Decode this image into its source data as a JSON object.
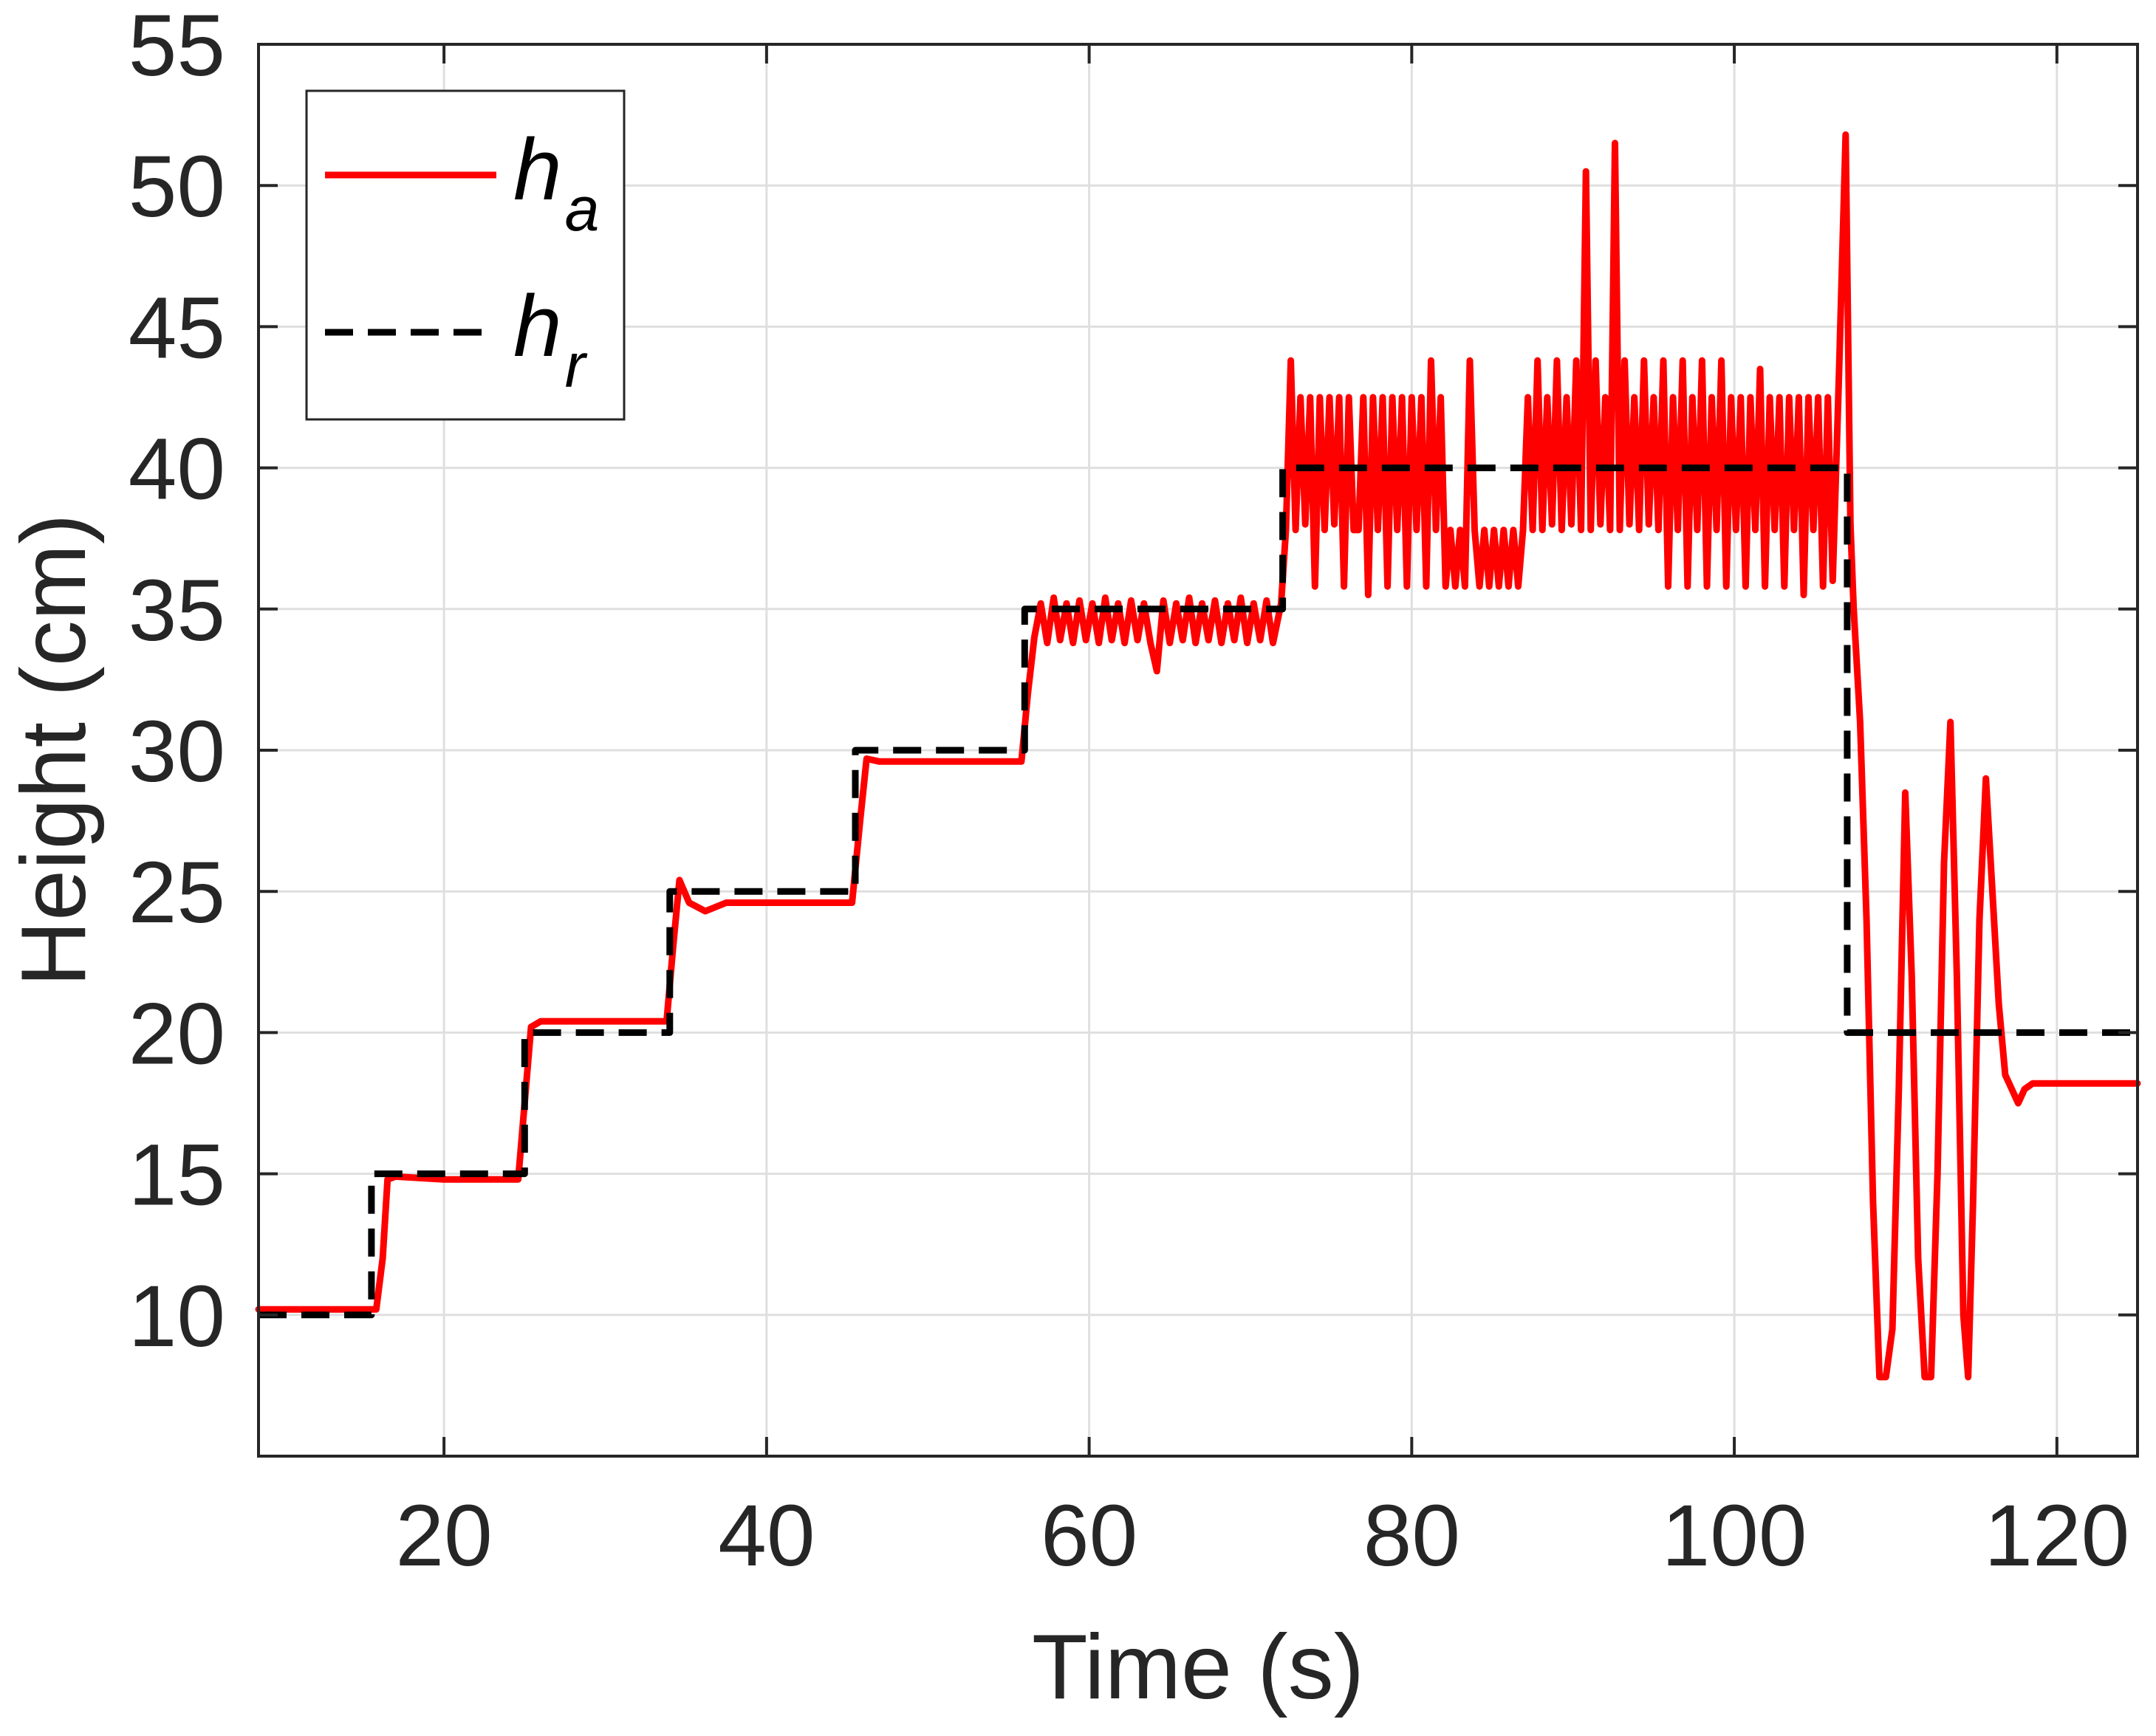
{
  "chart_data": {
    "type": "line",
    "xlabel": "Time (s)",
    "ylabel": "Height (cm)",
    "xlim": [
      8.5,
      125
    ],
    "ylim": [
      5,
      55
    ],
    "xticks": [
      20,
      40,
      60,
      80,
      100,
      120
    ],
    "yticks": [
      10,
      15,
      20,
      25,
      30,
      35,
      40,
      45,
      50,
      55
    ],
    "grid": true,
    "legend_position": "top-left",
    "series": [
      {
        "name": "h_a",
        "label_main": "h",
        "label_sub": "a",
        "style": "solid",
        "color": "#ff0000",
        "points": [
          [
            8.5,
            10.2
          ],
          [
            15.8,
            10.2
          ],
          [
            16.2,
            12.0
          ],
          [
            16.5,
            14.8
          ],
          [
            17.0,
            14.9
          ],
          [
            20,
            14.8
          ],
          [
            24.6,
            14.8
          ],
          [
            25.0,
            17.5
          ],
          [
            25.4,
            20.2
          ],
          [
            26.0,
            20.4
          ],
          [
            30,
            20.4
          ],
          [
            33.8,
            20.4
          ],
          [
            34.2,
            23.0
          ],
          [
            34.6,
            25.4
          ],
          [
            35.2,
            24.6
          ],
          [
            36.2,
            24.3
          ],
          [
            37.5,
            24.6
          ],
          [
            42,
            24.6
          ],
          [
            45.3,
            24.6
          ],
          [
            45.8,
            27.5
          ],
          [
            46.2,
            29.7
          ],
          [
            47.0,
            29.6
          ],
          [
            52,
            29.6
          ],
          [
            55.8,
            29.6
          ],
          [
            56.2,
            32.0
          ],
          [
            56.6,
            34.0
          ],
          [
            57.0,
            35.2
          ],
          [
            57.4,
            33.8
          ],
          [
            57.8,
            35.4
          ],
          [
            58.2,
            33.9
          ],
          [
            58.6,
            35.2
          ],
          [
            59.0,
            33.8
          ],
          [
            59.4,
            35.3
          ],
          [
            59.8,
            33.9
          ],
          [
            60.2,
            35.2
          ],
          [
            60.6,
            33.8
          ],
          [
            61.0,
            35.4
          ],
          [
            61.4,
            33.9
          ],
          [
            61.8,
            35.2
          ],
          [
            62.2,
            33.8
          ],
          [
            62.6,
            35.3
          ],
          [
            63.0,
            33.9
          ],
          [
            63.4,
            35.2
          ],
          [
            63.8,
            33.8
          ],
          [
            64.2,
            32.8
          ],
          [
            64.6,
            35.3
          ],
          [
            65.0,
            33.8
          ],
          [
            65.4,
            35.2
          ],
          [
            65.8,
            33.9
          ],
          [
            66.2,
            35.4
          ],
          [
            66.6,
            33.8
          ],
          [
            67.0,
            35.2
          ],
          [
            67.4,
            33.9
          ],
          [
            67.8,
            35.3
          ],
          [
            68.2,
            33.8
          ],
          [
            68.6,
            35.2
          ],
          [
            69.0,
            33.9
          ],
          [
            69.4,
            35.4
          ],
          [
            69.8,
            33.8
          ],
          [
            70.2,
            35.2
          ],
          [
            70.6,
            33.9
          ],
          [
            71.0,
            35.3
          ],
          [
            71.4,
            33.8
          ],
          [
            71.9,
            35.2
          ],
          [
            72.2,
            37.8
          ],
          [
            72.5,
            43.8
          ],
          [
            72.8,
            37.8
          ],
          [
            73.1,
            42.5
          ],
          [
            73.4,
            38.0
          ],
          [
            73.7,
            42.5
          ],
          [
            74.0,
            35.8
          ],
          [
            74.3,
            42.5
          ],
          [
            74.6,
            37.8
          ],
          [
            74.9,
            42.5
          ],
          [
            75.2,
            38.0
          ],
          [
            75.5,
            42.5
          ],
          [
            75.8,
            35.8
          ],
          [
            76.1,
            42.5
          ],
          [
            76.4,
            37.8
          ],
          [
            76.7,
            37.8
          ],
          [
            77.0,
            42.5
          ],
          [
            77.3,
            35.5
          ],
          [
            77.6,
            42.5
          ],
          [
            77.9,
            37.8
          ],
          [
            78.2,
            42.5
          ],
          [
            78.5,
            35.8
          ],
          [
            78.8,
            42.5
          ],
          [
            79.1,
            37.8
          ],
          [
            79.4,
            42.5
          ],
          [
            79.7,
            35.8
          ],
          [
            80.0,
            42.5
          ],
          [
            80.3,
            37.8
          ],
          [
            80.6,
            42.5
          ],
          [
            80.9,
            35.8
          ],
          [
            81.2,
            43.8
          ],
          [
            81.5,
            37.8
          ],
          [
            81.8,
            42.5
          ],
          [
            82.1,
            35.8
          ],
          [
            82.4,
            37.8
          ],
          [
            82.7,
            35.8
          ],
          [
            83.0,
            37.8
          ],
          [
            83.3,
            35.8
          ],
          [
            83.6,
            43.8
          ],
          [
            83.9,
            37.8
          ],
          [
            84.2,
            35.8
          ],
          [
            84.5,
            37.8
          ],
          [
            84.8,
            35.8
          ],
          [
            85.1,
            37.8
          ],
          [
            85.4,
            35.8
          ],
          [
            85.7,
            37.8
          ],
          [
            86.0,
            35.8
          ],
          [
            86.3,
            37.8
          ],
          [
            86.6,
            35.8
          ],
          [
            86.9,
            37.8
          ],
          [
            87.2,
            42.5
          ],
          [
            87.5,
            37.8
          ],
          [
            87.8,
            43.8
          ],
          [
            88.1,
            37.8
          ],
          [
            88.4,
            42.5
          ],
          [
            88.7,
            38.0
          ],
          [
            89.0,
            43.8
          ],
          [
            89.3,
            37.8
          ],
          [
            89.6,
            42.5
          ],
          [
            89.9,
            38.0
          ],
          [
            90.2,
            43.8
          ],
          [
            90.5,
            37.8
          ],
          [
            90.8,
            50.5
          ],
          [
            91.1,
            37.8
          ],
          [
            91.4,
            43.8
          ],
          [
            91.7,
            38.0
          ],
          [
            92.0,
            42.5
          ],
          [
            92.3,
            37.8
          ],
          [
            92.6,
            51.5
          ],
          [
            92.9,
            37.8
          ],
          [
            93.2,
            43.8
          ],
          [
            93.5,
            38.0
          ],
          [
            93.8,
            42.5
          ],
          [
            94.1,
            37.8
          ],
          [
            94.4,
            43.8
          ],
          [
            94.7,
            38.0
          ],
          [
            95.0,
            42.5
          ],
          [
            95.3,
            37.8
          ],
          [
            95.6,
            43.8
          ],
          [
            95.9,
            35.8
          ],
          [
            96.2,
            42.5
          ],
          [
            96.5,
            37.8
          ],
          [
            96.8,
            43.8
          ],
          [
            97.1,
            35.8
          ],
          [
            97.4,
            42.5
          ],
          [
            97.7,
            37.8
          ],
          [
            98.0,
            43.8
          ],
          [
            98.3,
            35.8
          ],
          [
            98.6,
            42.5
          ],
          [
            98.9,
            37.8
          ],
          [
            99.2,
            43.8
          ],
          [
            99.5,
            35.8
          ],
          [
            99.8,
            42.5
          ],
          [
            100.1,
            37.8
          ],
          [
            100.4,
            42.5
          ],
          [
            100.7,
            35.8
          ],
          [
            101.0,
            42.5
          ],
          [
            101.3,
            37.8
          ],
          [
            101.6,
            43.5
          ],
          [
            101.9,
            35.8
          ],
          [
            102.2,
            42.5
          ],
          [
            102.5,
            37.8
          ],
          [
            102.8,
            42.5
          ],
          [
            103.1,
            35.8
          ],
          [
            103.4,
            42.5
          ],
          [
            103.7,
            37.8
          ],
          [
            104.0,
            42.5
          ],
          [
            104.3,
            35.5
          ],
          [
            104.6,
            42.5
          ],
          [
            104.9,
            37.8
          ],
          [
            105.2,
            42.5
          ],
          [
            105.5,
            35.8
          ],
          [
            105.8,
            42.5
          ],
          [
            106.1,
            36.0
          ],
          [
            106.5,
            43.5
          ],
          [
            106.9,
            51.8
          ],
          [
            107.2,
            38.0
          ],
          [
            107.4,
            35.0
          ],
          [
            107.8,
            31.0
          ],
          [
            108.2,
            24.0
          ],
          [
            108.6,
            14.0
          ],
          [
            109.0,
            7.8
          ],
          [
            109.4,
            7.8
          ],
          [
            109.8,
            9.5
          ],
          [
            110.2,
            18.0
          ],
          [
            110.6,
            28.5
          ],
          [
            111.0,
            22.0
          ],
          [
            111.4,
            12.0
          ],
          [
            111.8,
            7.8
          ],
          [
            112.2,
            7.8
          ],
          [
            112.6,
            15.0
          ],
          [
            113.0,
            26.0
          ],
          [
            113.4,
            31.0
          ],
          [
            113.8,
            22.0
          ],
          [
            114.2,
            10.0
          ],
          [
            114.5,
            7.8
          ],
          [
            114.8,
            14.0
          ],
          [
            115.2,
            24.0
          ],
          [
            115.6,
            29.0
          ],
          [
            116.0,
            25.0
          ],
          [
            116.4,
            21.0
          ],
          [
            116.8,
            18.5
          ],
          [
            117.2,
            18.0
          ],
          [
            117.6,
            17.5
          ],
          [
            118.0,
            18.0
          ],
          [
            118.5,
            18.2
          ],
          [
            125,
            18.2
          ]
        ]
      },
      {
        "name": "h_r",
        "label_main": "h",
        "label_sub": "r",
        "style": "dashed",
        "color": "#000000",
        "points": [
          [
            8.5,
            10
          ],
          [
            15.5,
            10
          ],
          [
            15.5,
            15
          ],
          [
            25,
            15
          ],
          [
            25,
            20
          ],
          [
            34,
            20
          ],
          [
            34,
            25
          ],
          [
            45.5,
            25
          ],
          [
            45.5,
            30
          ],
          [
            56,
            30
          ],
          [
            56,
            35
          ],
          [
            72,
            35
          ],
          [
            72,
            40
          ],
          [
            107,
            40
          ],
          [
            107,
            20
          ],
          [
            125,
            20
          ]
        ]
      }
    ]
  }
}
